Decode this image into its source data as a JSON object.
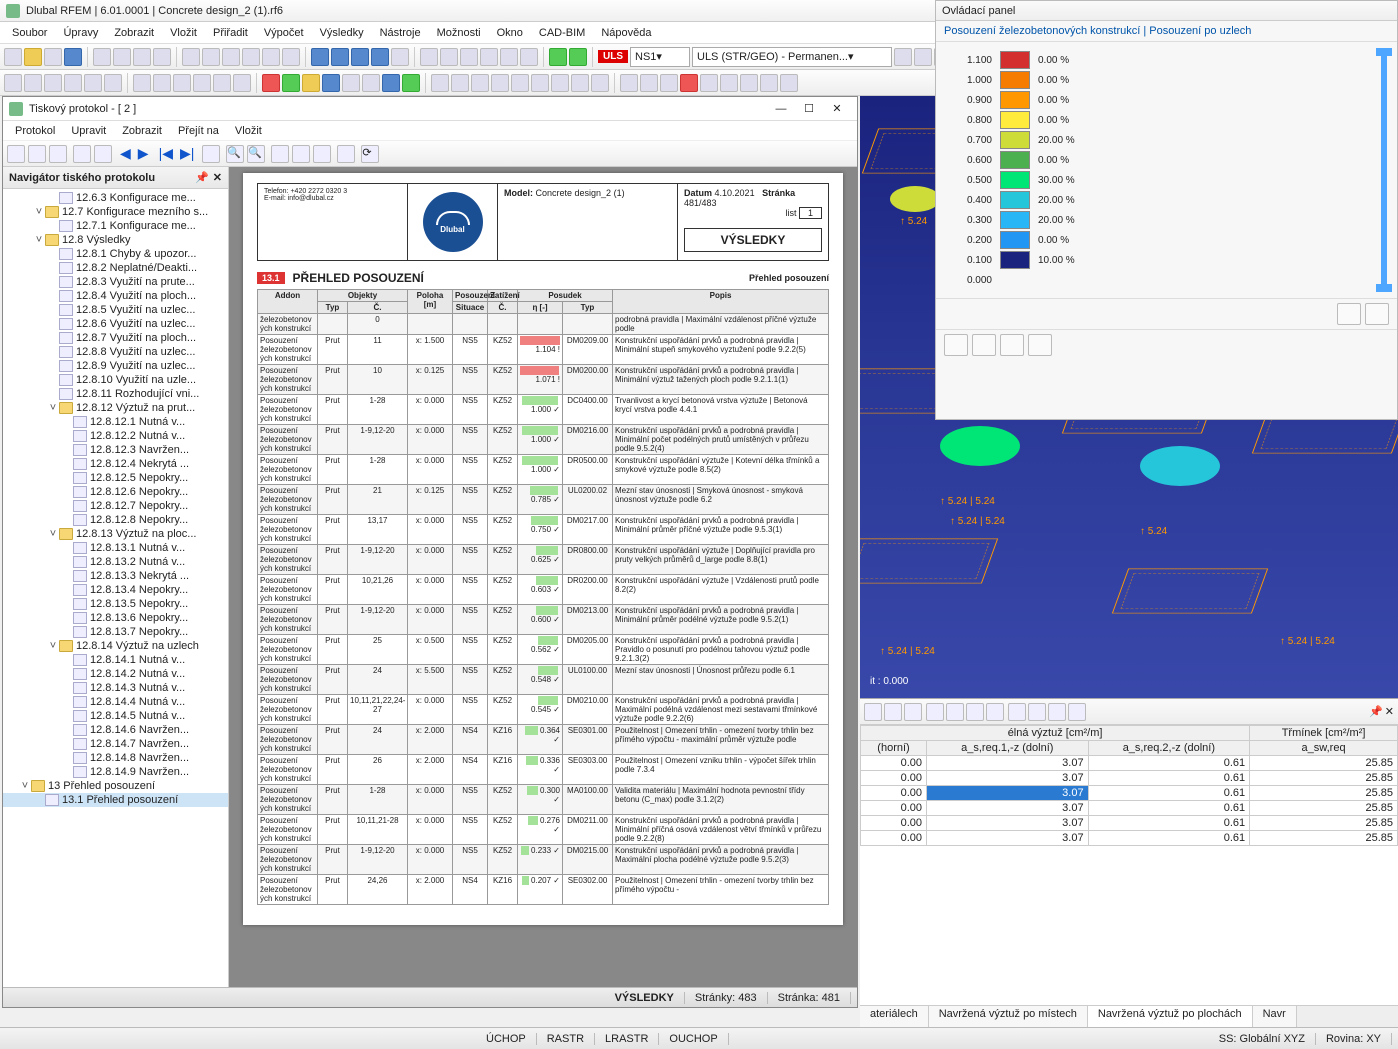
{
  "app": {
    "title": "Dlubal RFEM | 6.01.0001 | Concrete design_2 (1).rf6"
  },
  "menu": [
    "Soubor",
    "Úpravy",
    "Zobrazit",
    "Vložit",
    "Přiřadit",
    "Výpočet",
    "Výsledky",
    "Nástroje",
    "Možnosti",
    "Okno",
    "CAD-BIM",
    "Nápověda"
  ],
  "combos": {
    "uls": "ULS",
    "ns1": "NS1",
    "ulsgeo": "ULS (STR/GEO) - Permanen..."
  },
  "child": {
    "title": "Tiskový protokol - [ 2 ]",
    "menu": [
      "Protokol",
      "Upravit",
      "Zobrazit",
      "Přejít na",
      "Vložit"
    ],
    "nav_title": "Navigátor tiského protokolu",
    "status": {
      "results": "VÝSLEDKY",
      "pages_total": "Stránky: 483",
      "page": "Stránka: 481"
    },
    "tree": [
      {
        "d": 3,
        "t": "item",
        "l": "12.6.3 Konfigurace me..."
      },
      {
        "d": 2,
        "t": "folder",
        "tw": "v",
        "l": "12.7 Konfigurace mezního s..."
      },
      {
        "d": 3,
        "t": "item",
        "l": "12.7.1 Konfigurace me..."
      },
      {
        "d": 2,
        "t": "folder",
        "tw": "v",
        "l": "12.8 Výsledky"
      },
      {
        "d": 3,
        "t": "item",
        "l": "12.8.1 Chyby & upozor..."
      },
      {
        "d": 3,
        "t": "item",
        "l": "12.8.2 Neplatné/Deakti..."
      },
      {
        "d": 3,
        "t": "item",
        "l": "12.8.3 Využití na prute..."
      },
      {
        "d": 3,
        "t": "item",
        "l": "12.8.4 Využití na ploch..."
      },
      {
        "d": 3,
        "t": "item",
        "l": "12.8.5 Využití na uzlec..."
      },
      {
        "d": 3,
        "t": "item",
        "l": "12.8.6 Využití na uzlec..."
      },
      {
        "d": 3,
        "t": "item",
        "l": "12.8.7 Využití na ploch..."
      },
      {
        "d": 3,
        "t": "item",
        "l": "12.8.8 Využití na uzlec..."
      },
      {
        "d": 3,
        "t": "item",
        "l": "12.8.9 Využití na uzlec..."
      },
      {
        "d": 3,
        "t": "item",
        "l": "12.8.10 Využití na uzle..."
      },
      {
        "d": 3,
        "t": "item",
        "l": "12.8.11 Rozhodující vni..."
      },
      {
        "d": 3,
        "t": "folder",
        "tw": "v",
        "l": "12.8.12 Výztuž na prut..."
      },
      {
        "d": 4,
        "t": "item",
        "l": "12.8.12.1 Nutná v..."
      },
      {
        "d": 4,
        "t": "item",
        "l": "12.8.12.2 Nutná v..."
      },
      {
        "d": 4,
        "t": "item",
        "l": "12.8.12.3 Navržen..."
      },
      {
        "d": 4,
        "t": "item",
        "l": "12.8.12.4 Nekrytá ..."
      },
      {
        "d": 4,
        "t": "item",
        "l": "12.8.12.5 Nepokry..."
      },
      {
        "d": 4,
        "t": "item",
        "l": "12.8.12.6 Nepokry..."
      },
      {
        "d": 4,
        "t": "item",
        "l": "12.8.12.7 Nepokry..."
      },
      {
        "d": 4,
        "t": "item",
        "l": "12.8.12.8 Nepokry..."
      },
      {
        "d": 3,
        "t": "folder",
        "tw": "v",
        "l": "12.8.13 Výztuž na ploc..."
      },
      {
        "d": 4,
        "t": "item",
        "l": "12.8.13.1 Nutná v..."
      },
      {
        "d": 4,
        "t": "item",
        "l": "12.8.13.2 Nutná v..."
      },
      {
        "d": 4,
        "t": "item",
        "l": "12.8.13.3 Nekrytá ..."
      },
      {
        "d": 4,
        "t": "item",
        "l": "12.8.13.4 Nepokry..."
      },
      {
        "d": 4,
        "t": "item",
        "l": "12.8.13.5 Nepokry..."
      },
      {
        "d": 4,
        "t": "item",
        "l": "12.8.13.6 Nepokry..."
      },
      {
        "d": 4,
        "t": "item",
        "l": "12.8.13.7 Nepokry..."
      },
      {
        "d": 3,
        "t": "folder",
        "tw": "v",
        "l": "12.8.14 Výztuž na uzlech"
      },
      {
        "d": 4,
        "t": "item",
        "l": "12.8.14.1 Nutná v..."
      },
      {
        "d": 4,
        "t": "item",
        "l": "12.8.14.2 Nutná v..."
      },
      {
        "d": 4,
        "t": "item",
        "l": "12.8.14.3 Nutná v..."
      },
      {
        "d": 4,
        "t": "item",
        "l": "12.8.14.4 Nutná v..."
      },
      {
        "d": 4,
        "t": "item",
        "l": "12.8.14.5 Nutná v..."
      },
      {
        "d": 4,
        "t": "item",
        "l": "12.8.14.6 Navržen..."
      },
      {
        "d": 4,
        "t": "item",
        "l": "12.8.14.7 Navržen..."
      },
      {
        "d": 4,
        "t": "item",
        "l": "12.8.14.8 Navržen..."
      },
      {
        "d": 4,
        "t": "item",
        "l": "12.8.14.9 Navržen..."
      },
      {
        "d": 1,
        "t": "folder",
        "tw": "v",
        "l": "13 Přehled posouzení"
      },
      {
        "d": 2,
        "t": "item",
        "l": "13.1 Přehled posouzení",
        "sel": true
      }
    ]
  },
  "report": {
    "model_label": "Model:",
    "model": "Concrete design_2 (1)",
    "date_label": "Datum",
    "date": "4.10.2021",
    "page_label": "Stránka",
    "page": "481/483",
    "list_label": "list",
    "list": "1",
    "results": "VÝSLEDKY",
    "tel": "Telefon: +420 2272 0320 3",
    "mail": "E-mail: info@dlubal.cz",
    "section_num": "13.1",
    "section_title": "PŘEHLED POSOUZENÍ",
    "section_right": "Přehled posouzení",
    "th_top": [
      "Addon",
      "Objekty",
      "",
      "Posouzení",
      "Zatížení",
      "Posudek",
      ""
    ],
    "th": [
      "Addon",
      "Typ",
      "Č.",
      "Poloha [m]",
      "Situace",
      "Č.",
      "η [-]",
      "Typ",
      "Popis"
    ],
    "addon_text": "Posouzení železobetonov ých konstrukcí",
    "addon_short": "železobetonov ých konstrukcí",
    "rows": [
      {
        "typ": "",
        "c": "0",
        "pol": "",
        "sit": "",
        "zc": "",
        "eta": "",
        "ecol": "",
        "pt": "",
        "d": "podrobná pravidla | Maximální vzdálenost příčné výztuže podle",
        "first": true
      },
      {
        "typ": "Prut",
        "c": "11",
        "pol": "x: 1.500",
        "sit": "NS5",
        "zc": "KZ52",
        "eta": "1.104",
        "ecol": "r",
        "sym": "!",
        "pt": "DM0209.00",
        "d": "Konstrukční uspořádání prvků a podrobná pravidla | Minimální stupeň smykového vyztužení podle 9.2.2(5)"
      },
      {
        "typ": "Prut",
        "c": "10",
        "pol": "x: 0.125",
        "sit": "NS5",
        "zc": "KZ52",
        "eta": "1.071",
        "ecol": "r",
        "sym": "!",
        "pt": "DM0200.00",
        "d": "Konstrukční uspořádání prvků a podrobná pravidla | Minimální výztuž tažených ploch podle 9.2.1.1(1)"
      },
      {
        "typ": "Prut",
        "c": "1-28",
        "pol": "x: 0.000",
        "sit": "NS5",
        "zc": "KZ52",
        "eta": "1.000",
        "ecol": "g",
        "pt": "DC0400.00",
        "d": "Trvanlivost a krycí betonová vrstva výztuže | Betonová krycí vrstva podle 4.4.1"
      },
      {
        "typ": "Prut",
        "c": "1-9,12-20",
        "pol": "x: 0.000",
        "sit": "NS5",
        "zc": "KZ52",
        "eta": "1.000",
        "ecol": "g",
        "pt": "DM0216.00",
        "d": "Konstrukční uspořádání prvků a podrobná pravidla | Minimální počet podélných prutů umístěných v průřezu podle 9.5.2(4)"
      },
      {
        "typ": "Prut",
        "c": "1-28",
        "pol": "x: 0.000",
        "sit": "NS5",
        "zc": "KZ52",
        "eta": "1.000",
        "ecol": "g",
        "pt": "DR0500.00",
        "d": "Konstrukční uspořádání výztuže | Kotevní délka třmínků a smykové výztuže podle 8.5(2)"
      },
      {
        "typ": "Prut",
        "c": "21",
        "pol": "x: 0.125",
        "sit": "NS5",
        "zc": "KZ52",
        "eta": "0.785",
        "ecol": "g",
        "pt": "UL0200.02",
        "d": "Mezní stav únosnosti | Smyková únosnost - smyková únosnost výztuže podle 6.2"
      },
      {
        "typ": "Prut",
        "c": "13,17",
        "pol": "x: 0.000",
        "sit": "NS5",
        "zc": "KZ52",
        "eta": "0.750",
        "ecol": "g",
        "pt": "DM0217.00",
        "d": "Konstrukční uspořádání prvků a podrobná pravidla | Minimální průměr příčné výztuže podle 9.5.3(1)"
      },
      {
        "typ": "Prut",
        "c": "1-9,12-20",
        "pol": "x: 0.000",
        "sit": "NS5",
        "zc": "KZ52",
        "eta": "0.625",
        "ecol": "g",
        "pt": "DR0800.00",
        "d": "Konstrukční uspořádání výztuže | Doplňující pravidla pro pruty velkých průměrů d_large podle 8.8(1)"
      },
      {
        "typ": "Prut",
        "c": "10,21,26",
        "pol": "x: 0.000",
        "sit": "NS5",
        "zc": "KZ52",
        "eta": "0.603",
        "ecol": "g",
        "pt": "DR0200.00",
        "d": "Konstrukční uspořádání výztuže | Vzdálenosti prutů podle 8.2(2)"
      },
      {
        "typ": "Prut",
        "c": "1-9,12-20",
        "pol": "x: 0.000",
        "sit": "NS5",
        "zc": "KZ52",
        "eta": "0.600",
        "ecol": "g",
        "pt": "DM0213.00",
        "d": "Konstrukční uspořádání prvků a podrobná pravidla | Minimální průměr podélné výztuže podle 9.5.2(1)"
      },
      {
        "typ": "Prut",
        "c": "25",
        "pol": "x: 0.500",
        "sit": "NS5",
        "zc": "KZ52",
        "eta": "0.562",
        "ecol": "g",
        "pt": "DM0205.00",
        "d": "Konstrukční uspořádání prvků a podrobná pravidla | Pravidlo o posunutí pro podélnou tahovou výztuž podle 9.2.1.3(2)"
      },
      {
        "typ": "Prut",
        "c": "24",
        "pol": "x: 5.500",
        "sit": "NS5",
        "zc": "KZ52",
        "eta": "0.548",
        "ecol": "g",
        "pt": "UL0100.00",
        "d": "Mezní stav únosnosti | Únosnost průřezu podle 6.1"
      },
      {
        "typ": "Prut",
        "c": "10,11,21,22,24-27",
        "pol": "x: 0.000",
        "sit": "NS5",
        "zc": "KZ52",
        "eta": "0.545",
        "ecol": "g",
        "pt": "DM0210.00",
        "d": "Konstrukční uspořádání prvků a podrobná pravidla | Maximální podélná vzdálenost mezi sestavami třmínkové výztuže podle 9.2.2(6)"
      },
      {
        "typ": "Prut",
        "c": "24",
        "pol": "x: 2.000",
        "sit": "NS4",
        "zc": "KZ16",
        "eta": "0.364",
        "ecol": "g",
        "pt": "SE0301.00",
        "d": "Použitelnost | Omezení trhlin - omezení tvorby trhlin bez přímého výpočtu - maximální průměr výztuže podle"
      },
      {
        "typ": "Prut",
        "c": "26",
        "pol": "x: 2.000",
        "sit": "NS4",
        "zc": "KZ16",
        "eta": "0.336",
        "ecol": "g",
        "pt": "SE0303.00",
        "d": "Použitelnost | Omezení vzniku trhlin - výpočet šířek trhlin podle 7.3.4"
      },
      {
        "typ": "Prut",
        "c": "1-28",
        "pol": "x: 0.000",
        "sit": "NS5",
        "zc": "KZ52",
        "eta": "0.300",
        "ecol": "g",
        "pt": "MA0100.00",
        "d": "Validita materiálu | Maximální hodnota pevnostní třídy betonu (C_max) podle 3.1.2(2)"
      },
      {
        "typ": "Prut",
        "c": "10,11,21-28",
        "pol": "x: 0.000",
        "sit": "NS5",
        "zc": "KZ52",
        "eta": "0.276",
        "ecol": "g",
        "pt": "DM0211.00",
        "d": "Konstrukční uspořádání prvků a podrobná pravidla | Minimální příčná osová vzdálenost větví třmínků v průřezu podle 9.2.2(8)"
      },
      {
        "typ": "Prut",
        "c": "1-9,12-20",
        "pol": "x: 0.000",
        "sit": "NS5",
        "zc": "KZ52",
        "eta": "0.233",
        "ecol": "g",
        "pt": "DM0215.00",
        "d": "Konstrukční uspořádání prvků a podrobná pravidla | Maximální plocha podélné výztuže podle 9.5.2(3)"
      },
      {
        "typ": "Prut",
        "c": "24,26",
        "pol": "x: 2.000",
        "sit": "NS4",
        "zc": "KZ16",
        "eta": "0.207",
        "ecol": "g",
        "pt": "SE0302.00",
        "d": "Použitelnost | Omezení trhlin - omezení tvorby trhlin bez přímého výpočtu -"
      }
    ]
  },
  "viewport_labels": [
    "↑ 5.24",
    "↑ 2.57 | 2.57",
    "↑ 5.24",
    "↑ 5.24 | 5.24",
    "↑ 5.24 | 5.24",
    "↑ 5.24",
    "↑ 5.24 | 5.24",
    "↑ 5.24 | 5.24",
    "it : 0.000"
  ],
  "panel": {
    "title": "Ovládací panel",
    "sub": "Posouzení železobetonových konstrukcí | Posouzení po uzlech",
    "legend": [
      {
        "v": "1.100",
        "c": "#d32f2f",
        "p": "0.00 %"
      },
      {
        "v": "1.000",
        "c": "#f57c00",
        "p": "0.00 %"
      },
      {
        "v": "0.900",
        "c": "#ff9800",
        "p": "0.00 %"
      },
      {
        "v": "0.800",
        "c": "#ffeb3b",
        "p": "0.00 %"
      },
      {
        "v": "0.700",
        "c": "#cddc39",
        "p": "20.00 %"
      },
      {
        "v": "0.600",
        "c": "#4caf50",
        "p": "0.00 %"
      },
      {
        "v": "0.500",
        "c": "#00e676",
        "p": "30.00 %"
      },
      {
        "v": "0.400",
        "c": "#26c6da",
        "p": "20.00 %"
      },
      {
        "v": "0.300",
        "c": "#29b6f6",
        "p": "20.00 %"
      },
      {
        "v": "0.200",
        "c": "#2196f3",
        "p": "0.00 %"
      },
      {
        "v": "0.100",
        "c": "#1a237e",
        "p": "10.00 %"
      },
      {
        "v": "0.000",
        "c": "",
        "p": ""
      }
    ]
  },
  "grid": {
    "head_group1": "élná výztuž [cm²/m]",
    "head_group2": "Třmínek [cm²/m²]",
    "cols": [
      "(horní)",
      "a_s,req.1,-z (dolní)",
      "a_s,req.2,-z (dolní)",
      "a_sw,req"
    ],
    "rows": [
      [
        "0.00",
        "3.07",
        "0.61",
        "25.85"
      ],
      [
        "0.00",
        "3.07",
        "0.61",
        "25.85"
      ],
      [
        "0.00",
        "3.07",
        "0.61",
        "25.85"
      ],
      [
        "0.00",
        "3.07",
        "0.61",
        "25.85"
      ],
      [
        "0.00",
        "3.07",
        "0.61",
        "25.85"
      ],
      [
        "0.00",
        "3.07",
        "0.61",
        "25.85"
      ]
    ],
    "sel_row": 2,
    "sel_col": 1,
    "tabs": [
      "ateriálech",
      "Navržená výztuž po místech",
      "Navržená výztuž po plochách",
      "Navr"
    ]
  },
  "status": {
    "segs": [
      "ÚCHOP",
      "RASTR",
      "LRASTR",
      "OUCHOP"
    ],
    "ss": "SS: Globální XYZ",
    "rov": "Rovina: XY"
  }
}
